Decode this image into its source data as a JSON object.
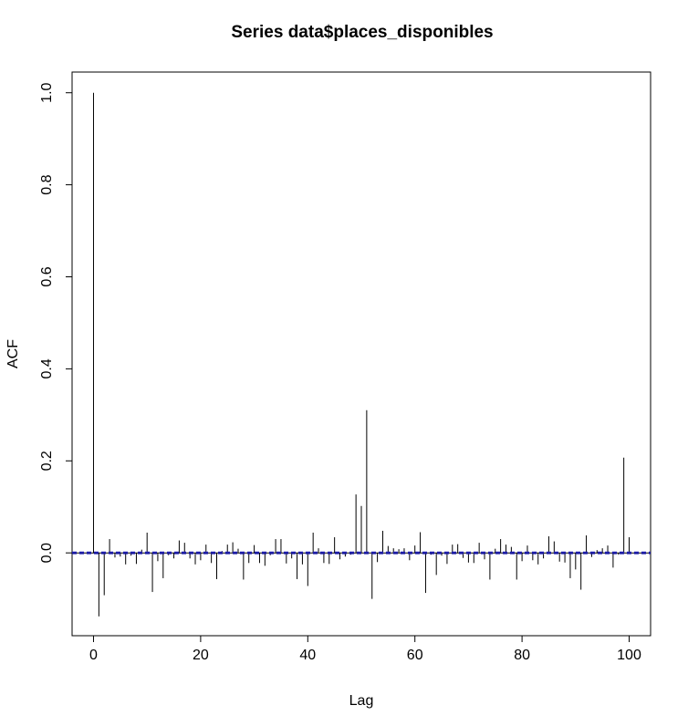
{
  "chart_data": {
    "type": "bar",
    "title": "Series  data$places_disponibles",
    "xlabel": "Lag",
    "ylabel": "ACF",
    "xlim": [
      -4,
      104
    ],
    "ylim": [
      -0.18,
      1.045
    ],
    "xticks": [
      0,
      20,
      40,
      60,
      80,
      100
    ],
    "xtick_labels": [
      "0",
      "20",
      "40",
      "60",
      "80",
      "100"
    ],
    "yticks": [
      0.0,
      0.2,
      0.4,
      0.6,
      0.8,
      1.0
    ],
    "ytick_labels": [
      "0.0",
      "0.2",
      "0.4",
      "0.6",
      "0.8",
      "1.0"
    ],
    "confidence_bound": 0.0015,
    "lags": [
      0,
      1,
      2,
      3,
      4,
      5,
      6,
      7,
      8,
      9,
      10,
      11,
      12,
      13,
      14,
      15,
      16,
      17,
      18,
      19,
      20,
      21,
      22,
      23,
      24,
      25,
      26,
      27,
      28,
      29,
      30,
      31,
      32,
      33,
      34,
      35,
      36,
      37,
      38,
      39,
      40,
      41,
      42,
      43,
      44,
      45,
      46,
      47,
      48,
      49,
      50,
      51,
      52,
      53,
      54,
      55,
      56,
      57,
      58,
      59,
      60,
      61,
      62,
      63,
      64,
      65,
      66,
      67,
      68,
      69,
      70,
      71,
      72,
      73,
      74,
      75,
      76,
      77,
      78,
      79,
      80,
      81,
      82,
      83,
      84,
      85,
      86,
      87,
      88,
      89,
      90,
      91,
      92,
      93,
      94,
      95,
      96,
      97,
      98,
      99,
      100
    ],
    "values": [
      1.0,
      -0.138,
      -0.092,
      0.03,
      -0.01,
      -0.008,
      -0.025,
      -0.006,
      -0.024,
      0.007,
      0.044,
      -0.085,
      -0.018,
      -0.055,
      -0.005,
      -0.012,
      0.027,
      0.022,
      -0.012,
      -0.025,
      -0.016,
      0.018,
      -0.022,
      -0.057,
      0.004,
      0.018,
      0.023,
      0.009,
      -0.058,
      -0.022,
      0.017,
      -0.022,
      -0.028,
      -0.005,
      0.03,
      0.03,
      -0.023,
      -0.012,
      -0.057,
      -0.025,
      -0.072,
      0.044,
      0.01,
      -0.022,
      -0.024,
      0.034,
      -0.014,
      -0.008,
      -0.004,
      0.127,
      0.102,
      0.31,
      -0.1,
      -0.02,
      0.048,
      0.015,
      0.01,
      0.008,
      0.01,
      -0.016,
      0.016,
      0.045,
      -0.087,
      -0.004,
      -0.048,
      -0.006,
      -0.024,
      0.018,
      0.019,
      -0.011,
      -0.021,
      -0.022,
      0.022,
      -0.014,
      -0.058,
      0.009,
      0.03,
      0.018,
      0.013,
      -0.058,
      -0.018,
      0.016,
      -0.016,
      -0.025,
      -0.012,
      0.036,
      0.025,
      -0.019,
      -0.021,
      -0.055,
      -0.036,
      -0.08,
      0.038,
      -0.009,
      0.006,
      0.01,
      0.016,
      -0.032,
      -0.004,
      0.207,
      0.034
    ]
  }
}
